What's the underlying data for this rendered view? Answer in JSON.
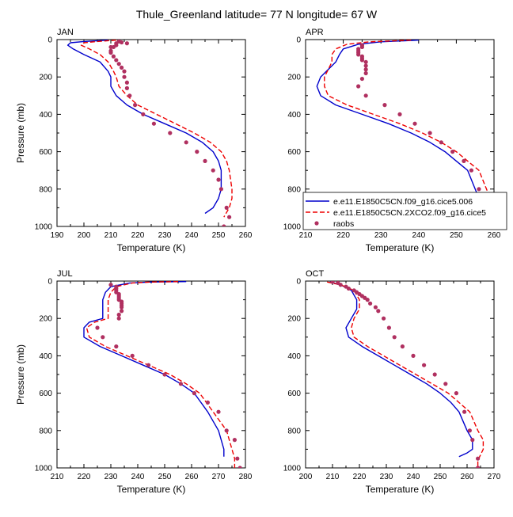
{
  "figure_title": "Thule_Greenland  latitude= 77 N longitude= 67 W",
  "colors": {
    "model1": "#0000cc",
    "model2": "#ee0000",
    "raobs": "#b03060",
    "axis": "#000000"
  },
  "legend": {
    "model1": "e.e11.E1850C5CN.f09_g16.cice5.006",
    "model2": "e.e11.E1850C5CN.2XCO2.f09_g16.cice5",
    "raobs": "raobs"
  },
  "chart_data": [
    {
      "type": "line",
      "month": "JAN",
      "xlabel": "Temperature (K)",
      "ylabel": "Pressure (mb)",
      "xlim": [
        190,
        260
      ],
      "ylim": [
        1000,
        0
      ],
      "y_reversed": true,
      "xticks": [
        190,
        200,
        210,
        220,
        230,
        240,
        250,
        260
      ],
      "yticks": [
        0,
        200,
        400,
        600,
        800,
        1000
      ],
      "series": [
        {
          "key": "model1",
          "style": "solid",
          "x": [
            209,
            200,
            195,
            194,
            196,
            200,
            206,
            209,
            210,
            210,
            212,
            216,
            222,
            230,
            238,
            244,
            248,
            250,
            251,
            251,
            250,
            248,
            245
          ],
          "y": [
            3,
            10,
            17,
            30,
            50,
            80,
            120,
            170,
            200,
            250,
            300,
            350,
            400,
            450,
            500,
            550,
            600,
            650,
            700,
            800,
            850,
            900,
            930
          ]
        },
        {
          "key": "model2",
          "style": "dashed",
          "x": [
            212,
            205,
            200,
            199,
            202,
            206,
            209,
            211,
            212,
            213,
            216,
            220,
            227,
            234,
            241,
            247,
            251,
            253,
            254,
            255,
            255,
            254,
            252
          ],
          "y": [
            3,
            10,
            17,
            30,
            50,
            80,
            120,
            170,
            200,
            250,
            300,
            350,
            400,
            450,
            500,
            550,
            600,
            650,
            700,
            800,
            850,
            900,
            950
          ]
        },
        {
          "key": "raobs",
          "style": "markers",
          "x": [
            210,
            212,
            216,
            214,
            213,
            212,
            211,
            210,
            210,
            211,
            212,
            213,
            214,
            215,
            215,
            216,
            216,
            217,
            219,
            222,
            226,
            232,
            238,
            242,
            245,
            248,
            250,
            251,
            253,
            254,
            252
          ],
          "y": [
            40,
            30,
            20,
            15,
            10,
            20,
            40,
            60,
            70,
            90,
            110,
            130,
            150,
            170,
            200,
            230,
            260,
            300,
            350,
            400,
            450,
            500,
            550,
            600,
            650,
            700,
            750,
            800,
            900,
            950,
            1000
          ]
        }
      ]
    },
    {
      "type": "line",
      "month": "APR",
      "xlabel": "Temperature (K)",
      "ylabel": "Pressure (mb)",
      "xlim": [
        210,
        260
      ],
      "ylim": [
        1000,
        0
      ],
      "y_reversed": true,
      "xticks": [
        210,
        220,
        230,
        240,
        250,
        260
      ],
      "yticks": [
        0,
        200,
        400,
        600,
        800,
        1000
      ],
      "series": [
        {
          "key": "model1",
          "style": "solid",
          "x": [
            240,
            230,
            224,
            220,
            219,
            218,
            216,
            214,
            213,
            214,
            218,
            225,
            232,
            238,
            243,
            247,
            250,
            253,
            255,
            256,
            256
          ],
          "y": [
            3,
            12,
            25,
            50,
            80,
            120,
            160,
            200,
            250,
            300,
            350,
            400,
            450,
            500,
            550,
            600,
            650,
            700,
            800,
            850,
            900
          ]
        },
        {
          "key": "model2",
          "style": "dashed",
          "x": [
            238,
            227,
            221,
            218,
            217,
            217,
            216,
            215,
            215,
            216,
            221,
            228,
            235,
            241,
            246,
            250,
            253,
            256,
            258,
            259,
            259,
            258
          ],
          "y": [
            3,
            12,
            25,
            50,
            80,
            120,
            160,
            200,
            250,
            300,
            350,
            400,
            450,
            500,
            550,
            600,
            650,
            700,
            800,
            850,
            900,
            950
          ]
        },
        {
          "key": "raobs",
          "style": "markers",
          "x": [
            225,
            225,
            224,
            224,
            224,
            224,
            225,
            225,
            225,
            226,
            226,
            226,
            226,
            225,
            224,
            226,
            231,
            235,
            239,
            243,
            246,
            249,
            252,
            254,
            256,
            257,
            258
          ],
          "y": [
            30,
            40,
            50,
            60,
            70,
            80,
            90,
            100,
            110,
            120,
            140,
            160,
            180,
            210,
            250,
            300,
            350,
            400,
            450,
            500,
            550,
            600,
            650,
            700,
            800,
            900,
            1000
          ]
        }
      ]
    },
    {
      "type": "line",
      "month": "JUL",
      "xlabel": "Temperature (K)",
      "ylabel": "Pressure (mb)",
      "xlim": [
        210,
        280
      ],
      "ylim": [
        1000,
        0
      ],
      "y_reversed": true,
      "xticks": [
        210,
        220,
        230,
        240,
        250,
        260,
        270,
        280
      ],
      "yticks": [
        0,
        200,
        400,
        600,
        800,
        1000
      ],
      "series": [
        {
          "key": "model1",
          "style": "solid",
          "x": [
            258,
            245,
            237,
            230,
            228,
            227,
            227,
            227,
            222,
            220,
            220,
            226,
            234,
            242,
            250,
            256,
            261,
            266,
            270,
            272,
            272
          ],
          "y": [
            3,
            5,
            10,
            30,
            60,
            100,
            150,
            200,
            220,
            250,
            300,
            350,
            400,
            450,
            500,
            550,
            600,
            700,
            800,
            900,
            940
          ]
        },
        {
          "key": "model2",
          "style": "dashed",
          "x": [
            255,
            245,
            238,
            232,
            230,
            229,
            229,
            229,
            224,
            221,
            222,
            228,
            236,
            244,
            252,
            258,
            263,
            268,
            273,
            275,
            276,
            276
          ],
          "y": [
            3,
            5,
            10,
            30,
            60,
            100,
            150,
            200,
            220,
            250,
            300,
            350,
            400,
            450,
            500,
            550,
            600,
            700,
            800,
            900,
            950,
            1000
          ]
        },
        {
          "key": "raobs",
          "style": "markers",
          "x": [
            230,
            232,
            232,
            232,
            232,
            233,
            233,
            233,
            233,
            234,
            234,
            234,
            234,
            234,
            233,
            233,
            225,
            227,
            232,
            238,
            244,
            250,
            256,
            261,
            266,
            270,
            273,
            276,
            277,
            278
          ],
          "y": [
            20,
            30,
            40,
            50,
            60,
            70,
            80,
            90,
            100,
            110,
            120,
            130,
            140,
            160,
            180,
            200,
            250,
            300,
            350,
            400,
            450,
            500,
            550,
            600,
            650,
            700,
            800,
            850,
            950,
            1000
          ]
        }
      ]
    },
    {
      "type": "line",
      "month": "OCT",
      "xlabel": "Temperature (K)",
      "ylabel": "Pressure (mb)",
      "xlim": [
        200,
        270
      ],
      "ylim": [
        1000,
        0
      ],
      "y_reversed": true,
      "xticks": [
        200,
        210,
        220,
        230,
        240,
        250,
        260,
        270
      ],
      "yticks": [
        0,
        200,
        400,
        600,
        800,
        1000
      ],
      "series": [
        {
          "key": "model1",
          "style": "solid",
          "x": [
            209,
            213,
            217,
            219,
            219,
            217,
            215,
            216,
            221,
            227,
            233,
            239,
            245,
            250,
            254,
            257,
            260,
            262,
            262,
            260,
            257
          ],
          "y": [
            5,
            20,
            50,
            100,
            150,
            200,
            250,
            300,
            350,
            400,
            450,
            500,
            550,
            600,
            650,
            700,
            800,
            850,
            900,
            920,
            940
          ]
        },
        {
          "key": "model2",
          "style": "dashed",
          "x": [
            208,
            213,
            218,
            220,
            220,
            218,
            217,
            218,
            223,
            229,
            235,
            241,
            247,
            253,
            257,
            261,
            264,
            266,
            266,
            265,
            264,
            264
          ],
          "y": [
            5,
            20,
            50,
            100,
            150,
            200,
            250,
            300,
            350,
            400,
            450,
            500,
            550,
            600,
            650,
            700,
            800,
            850,
            900,
            930,
            960,
            990
          ]
        },
        {
          "key": "raobs",
          "style": "markers",
          "x": [
            210,
            212,
            213,
            215,
            216,
            218,
            219,
            220,
            221,
            222,
            223,
            224,
            226,
            227,
            229,
            231,
            233,
            236,
            240,
            244,
            248,
            252,
            256,
            259,
            261,
            262,
            264,
            264
          ],
          "y": [
            5,
            10,
            20,
            30,
            40,
            50,
            60,
            70,
            80,
            90,
            100,
            120,
            140,
            160,
            200,
            250,
            300,
            350,
            400,
            450,
            500,
            550,
            600,
            700,
            800,
            850,
            950,
            1000
          ]
        }
      ]
    }
  ]
}
